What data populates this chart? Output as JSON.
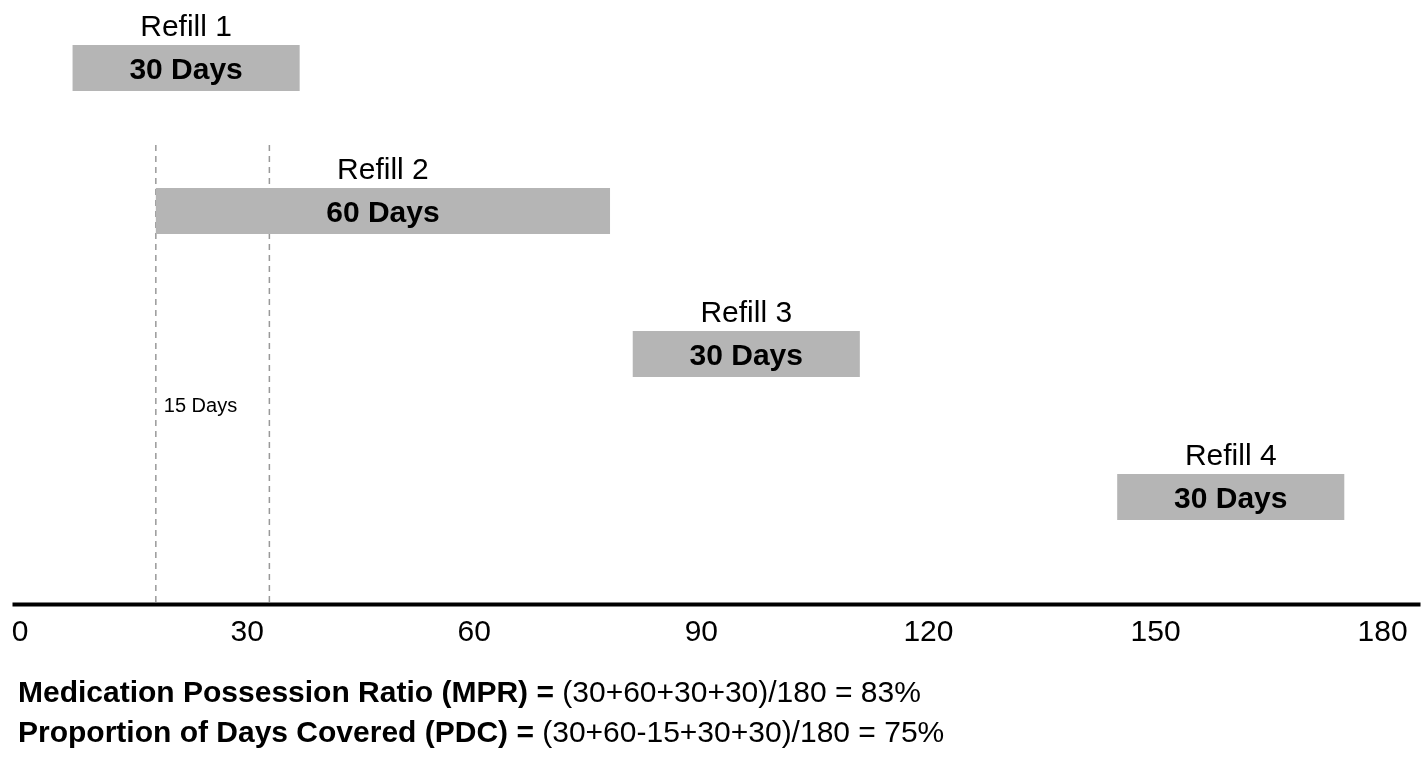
{
  "chart_data": {
    "type": "bar",
    "orientation": "horizontal",
    "categories": [
      "Refill 1",
      "Refill 2",
      "Refill 3",
      "Refill 4"
    ],
    "values": [
      30,
      60,
      30,
      30
    ],
    "base": [
      7,
      18,
      81,
      145
    ],
    "value_labels": [
      "30 Days",
      "60 Days",
      "30 Days",
      "30 Days"
    ],
    "color": "#b5b5b5",
    "xlim": [
      -1,
      185
    ],
    "xticks": [
      0,
      30,
      60,
      90,
      120,
      150,
      180
    ],
    "ref_lines": [
      {
        "axis": "x",
        "value": 18,
        "label": "15 Days",
        "line_style": "dashed",
        "color": "#999999"
      },
      {
        "axis": "x",
        "value": 33,
        "label": null,
        "line_style": "dashed",
        "color": "#999999"
      }
    ],
    "annotations": [
      "Medication Possession Ratio (MPR) = (30+60+30+30)/180 = 83%",
      "Proportion of Days Covered (PDC) = (30+60-15+30+30)/180 = 75%"
    ],
    "grid": false
  }
}
